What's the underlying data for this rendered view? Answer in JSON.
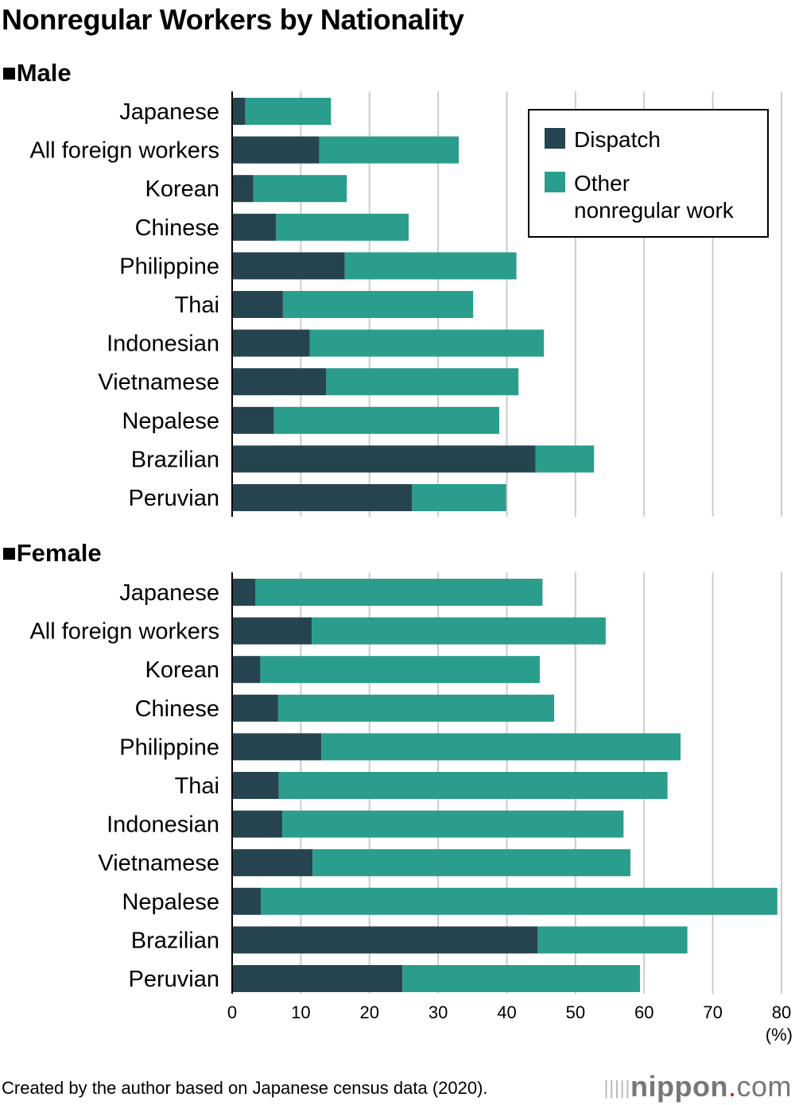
{
  "chart_data": {
    "type": "bar",
    "orientation": "horizontal",
    "stacked": true,
    "title": "Nonregular Workers by Nationality",
    "unit_label": "(%)",
    "xlim": [
      0,
      80
    ],
    "xticks": [
      0,
      10,
      20,
      30,
      40,
      50,
      60,
      70,
      80
    ],
    "grid": true,
    "legend_placement": "top-right",
    "colors": {
      "Dispatch": "#26444f",
      "Other nonregular work": "#2a9d8c"
    },
    "legend": [
      "Dispatch",
      "Other nonregular work"
    ],
    "legend_lines": [
      [
        "Dispatch"
      ],
      [
        "Other",
        "nonregular work"
      ]
    ],
    "categories": [
      "Japanese",
      "All foreign workers",
      "Korean",
      "Chinese",
      "Philippine",
      "Thai",
      "Indonesian",
      "Vietnamese",
      "Nepalese",
      "Brazilian",
      "Peruvian"
    ],
    "panels": [
      {
        "label": "■Male",
        "series": [
          {
            "name": "Dispatch",
            "values": [
              1.9,
              12.7,
              3.1,
              6.4,
              16.4,
              7.4,
              11.3,
              13.7,
              6.1,
              44.2,
              26.2
            ]
          },
          {
            "name": "Other nonregular work",
            "values": [
              12.5,
              20.3,
              13.6,
              19.3,
              25.0,
              27.7,
              34.1,
              28.0,
              32.8,
              8.5,
              13.7
            ]
          }
        ]
      },
      {
        "label": "■Female",
        "series": [
          {
            "name": "Dispatch",
            "values": [
              3.4,
              11.6,
              4.1,
              6.7,
              13.0,
              6.8,
              7.3,
              11.7,
              4.2,
              44.5,
              24.8
            ]
          },
          {
            "name": "Other nonregular work",
            "values": [
              41.8,
              42.8,
              40.7,
              40.2,
              52.3,
              56.6,
              49.7,
              46.3,
              75.2,
              21.8,
              34.6
            ]
          }
        ]
      }
    ]
  },
  "footer": {
    "source": "Created by the author based on Japanese census data (2020).",
    "logo_text": "nippon",
    "logo_dot": ".",
    "logo_suffix": "com"
  }
}
